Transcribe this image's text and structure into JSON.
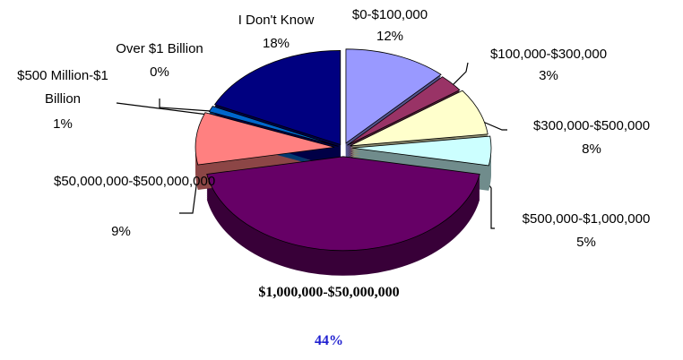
{
  "chart_data": {
    "type": "pie",
    "categories": [
      "$0-$100,000",
      "$100,000-$300,000",
      "$300,000-$500,000",
      "$500,000-$1,000,000",
      "$1,000,000-$50,000,000",
      "$50,000,000-$500,000,000",
      "$500 Million-$1 Billion",
      "Over $1 Billion",
      "I Don't Know"
    ],
    "values": [
      12,
      3,
      8,
      5,
      44,
      9,
      1,
      0,
      18
    ],
    "value_labels": [
      "12%",
      "3%",
      "8%",
      "5%",
      "44%",
      "9%",
      "1%",
      "0%",
      "18%"
    ],
    "colors": [
      "#9999ff",
      "#993366",
      "#ffffcc",
      "#ccffff",
      "#660066",
      "#ff8080",
      "#0066cc",
      "#c0c0c0",
      "#000080"
    ]
  }
}
